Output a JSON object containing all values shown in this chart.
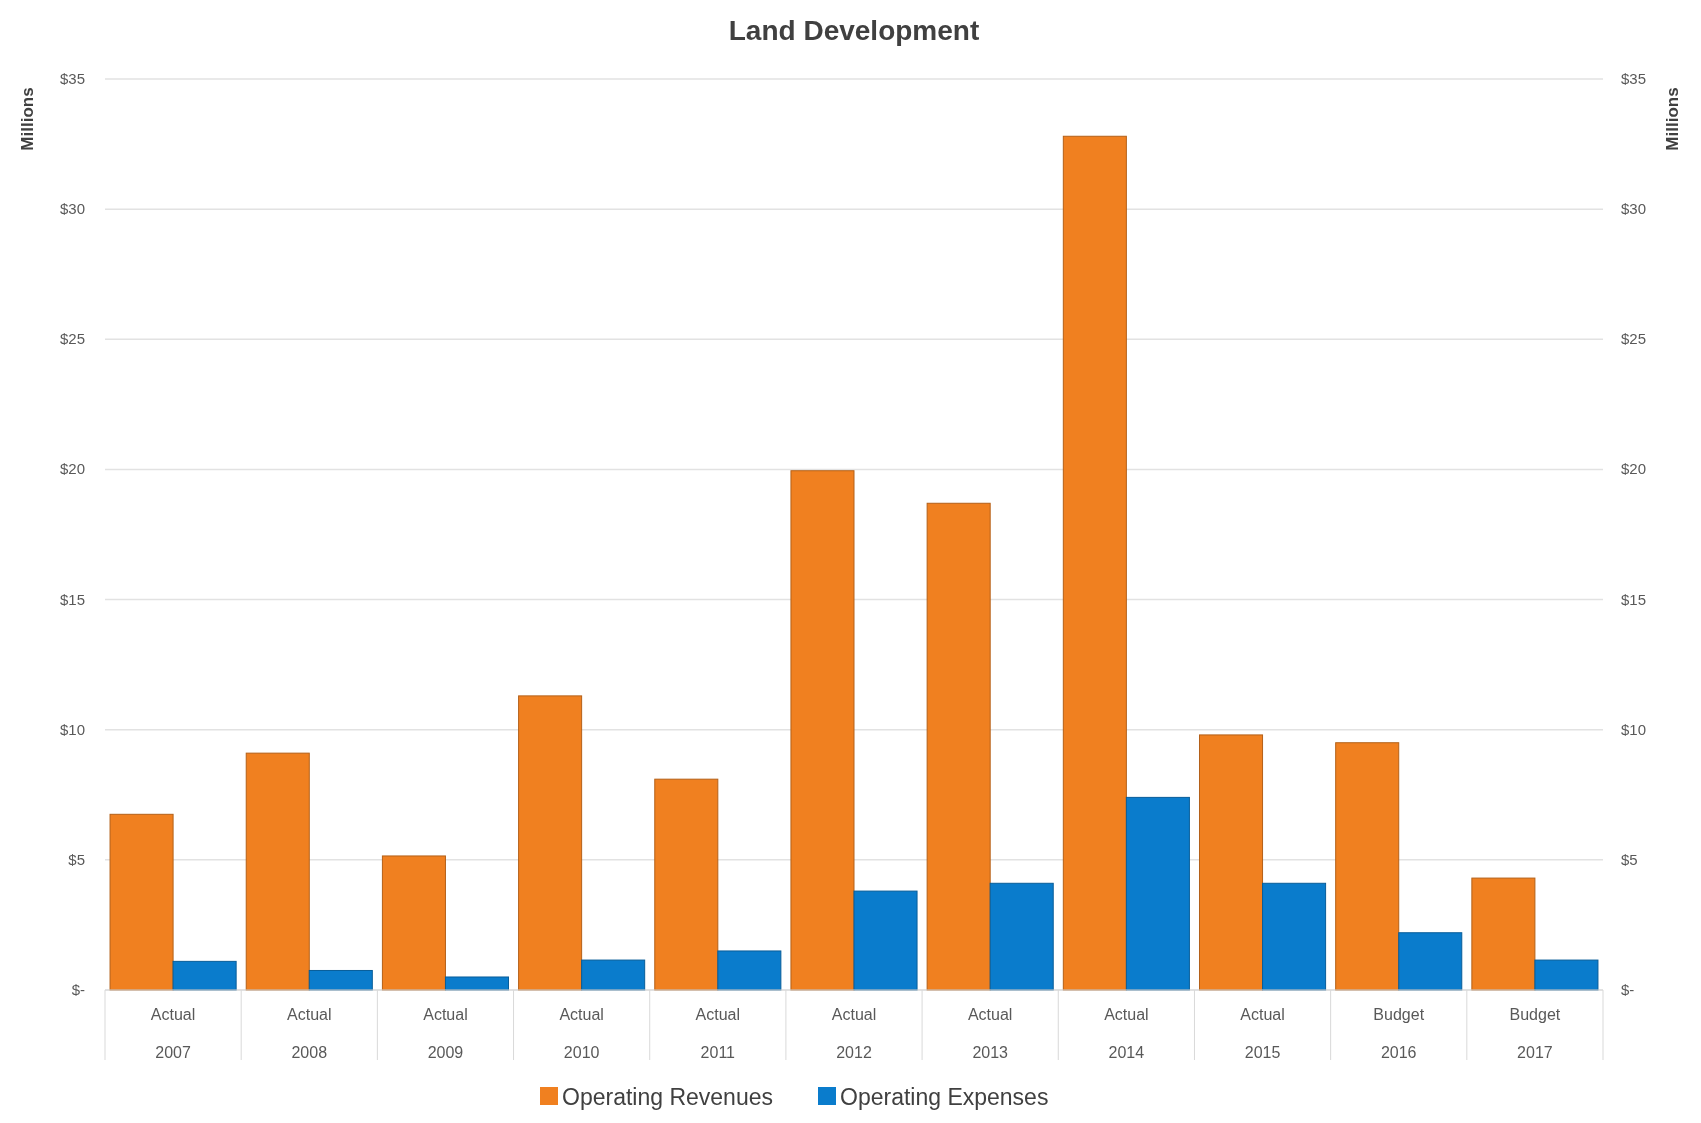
{
  "chart_data": {
    "type": "bar",
    "title": "Land Development",
    "ylabel": "Millions",
    "y2label": "Millions",
    "categories": [
      "Actual\n2007",
      "Actual\n2008",
      "Actual\n2009",
      "Actual\n2010",
      "Actual\n2011",
      "Actual\n2012",
      "Actual\n2013",
      "Actual\n2014",
      "Actual\n2015",
      "Budget\n2016",
      "Budget\n2017"
    ],
    "series": [
      {
        "name": "Operating Revenues",
        "color": "#f08020",
        "values": [
          6.75,
          9.1,
          5.15,
          11.3,
          8.1,
          19.95,
          18.7,
          32.8,
          9.8,
          9.5,
          4.3
        ]
      },
      {
        "name": "Operating Expenses",
        "color": "#0a7ccc",
        "values": [
          1.1,
          0.75,
          0.5,
          1.15,
          1.5,
          3.8,
          4.1,
          7.4,
          4.1,
          2.2,
          1.15
        ]
      }
    ],
    "ylim": [
      0,
      35
    ],
    "yticks": [
      {
        "value": 0,
        "label": "$-"
      },
      {
        "value": 5,
        "label": "$5"
      },
      {
        "value": 10,
        "label": "$10"
      },
      {
        "value": 15,
        "label": "$15"
      },
      {
        "value": 20,
        "label": "$20"
      },
      {
        "value": 25,
        "label": "$25"
      },
      {
        "value": 30,
        "label": "$30"
      },
      {
        "value": 35,
        "label": "$35"
      }
    ],
    "y2lim": [
      0,
      35
    ],
    "y2ticks": [
      {
        "value": 0,
        "label": "$-"
      },
      {
        "value": 5,
        "label": "$5"
      },
      {
        "value": 10,
        "label": "$10"
      },
      {
        "value": 15,
        "label": "$15"
      },
      {
        "value": 20,
        "label": "$20"
      },
      {
        "value": 25,
        "label": "$25"
      },
      {
        "value": 30,
        "label": "$30"
      },
      {
        "value": 35,
        "label": "$35"
      }
    ],
    "grid": "y",
    "legend": "bottom"
  }
}
